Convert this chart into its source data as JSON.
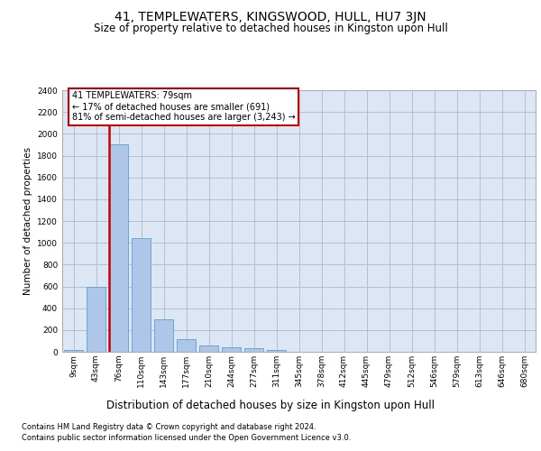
{
  "title": "41, TEMPLEWATERS, KINGSWOOD, HULL, HU7 3JN",
  "subtitle": "Size of property relative to detached houses in Kingston upon Hull",
  "xlabel_bottom": "Distribution of detached houses by size in Kingston upon Hull",
  "ylabel": "Number of detached properties",
  "footer_line1": "Contains HM Land Registry data © Crown copyright and database right 2024.",
  "footer_line2": "Contains public sector information licensed under the Open Government Licence v3.0.",
  "bar_labels": [
    "9sqm",
    "43sqm",
    "76sqm",
    "110sqm",
    "143sqm",
    "177sqm",
    "210sqm",
    "244sqm",
    "277sqm",
    "311sqm",
    "345sqm",
    "378sqm",
    "412sqm",
    "445sqm",
    "479sqm",
    "512sqm",
    "546sqm",
    "579sqm",
    "613sqm",
    "646sqm",
    "680sqm"
  ],
  "bar_values": [
    20,
    600,
    1900,
    1040,
    295,
    115,
    55,
    45,
    30,
    20,
    0,
    0,
    0,
    0,
    0,
    0,
    0,
    0,
    0,
    0,
    0
  ],
  "bar_color": "#aec6e8",
  "bar_edgecolor": "#5a9fd4",
  "highlight_bar_index": 2,
  "highlight_color": "#cc0000",
  "annotation_title": "41 TEMPLEWATERS: 79sqm",
  "annotation_line1": "← 17% of detached houses are smaller (691)",
  "annotation_line2": "81% of semi-detached houses are larger (3,243) →",
  "annotation_box_color": "#cc0000",
  "ylim": [
    0,
    2400
  ],
  "yticks": [
    0,
    200,
    400,
    600,
    800,
    1000,
    1200,
    1400,
    1600,
    1800,
    2000,
    2200,
    2400
  ],
  "background_color": "#ffffff",
  "plot_bg_color": "#dce6f5",
  "grid_color": "#b0b8cc",
  "fig_width": 6.0,
  "fig_height": 5.0,
  "title_fontsize": 10,
  "subtitle_fontsize": 8.5,
  "ylabel_fontsize": 7.5,
  "xlabel_bottom_fontsize": 8.5,
  "tick_fontsize": 6.5,
  "annotation_fontsize": 7.0
}
